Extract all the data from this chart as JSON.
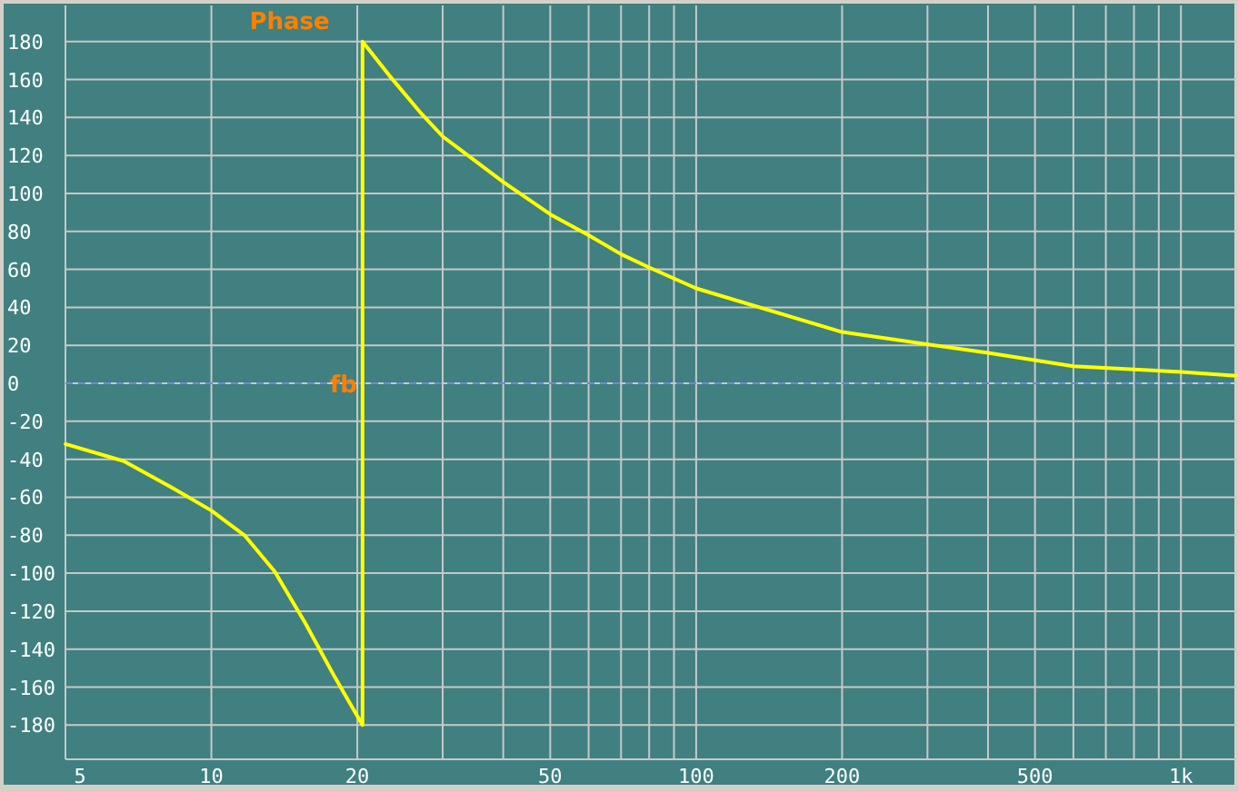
{
  "chart_data": {
    "type": "line",
    "title": "Phase",
    "x": [
      5,
      6.6,
      8.3,
      10,
      11.7,
      13.5,
      15.6,
      18,
      20.5,
      20.5,
      23.3,
      26.9,
      30,
      40,
      50,
      60,
      70,
      80,
      100,
      200,
      400,
      600,
      1000,
      1300
    ],
    "series": [
      {
        "color": "#ffff00",
        "values": [
          -32,
          -41,
          -55,
          -67,
          -80,
          -99,
          -126,
          -155,
          -180,
          180,
          162,
          143,
          130,
          106,
          89,
          78,
          68,
          61,
          50,
          27,
          16,
          9,
          6,
          4
        ]
      }
    ],
    "log": "x",
    "xlim": [
      5,
      1300
    ],
    "xticks": [
      5,
      10,
      20,
      {
        "value": 30,
        "label": null
      },
      {
        "value": 40,
        "label": null
      },
      50,
      {
        "value": 60,
        "label": null
      },
      {
        "value": 70,
        "label": null
      },
      {
        "value": 80,
        "label": null
      },
      {
        "value": 90,
        "label": null
      },
      100,
      200,
      {
        "value": 300,
        "label": null
      },
      {
        "value": 400,
        "label": null
      },
      500,
      {
        "value": 600,
        "label": null
      },
      {
        "value": 700,
        "label": null
      },
      {
        "value": 800,
        "label": null
      },
      {
        "value": 900,
        "label": null
      },
      {
        "value": 1000,
        "label": "1k"
      }
    ],
    "ylim": [
      -198,
      199
    ],
    "yticks": [
      -180,
      -160,
      -140,
      -120,
      -100,
      -80,
      -60,
      -40,
      -20,
      0,
      20,
      40,
      60,
      80,
      100,
      120,
      140,
      160,
      180
    ],
    "grid": true,
    "marker": "none",
    "line_style": "solid",
    "ref_lines": [
      {
        "axis": "y",
        "value": 0,
        "color": "#6a8ae0",
        "line_style": "dashed"
      }
    ],
    "annotations": [
      {
        "text": "fb",
        "x": 20.5,
        "y": 0
      }
    ]
  }
}
